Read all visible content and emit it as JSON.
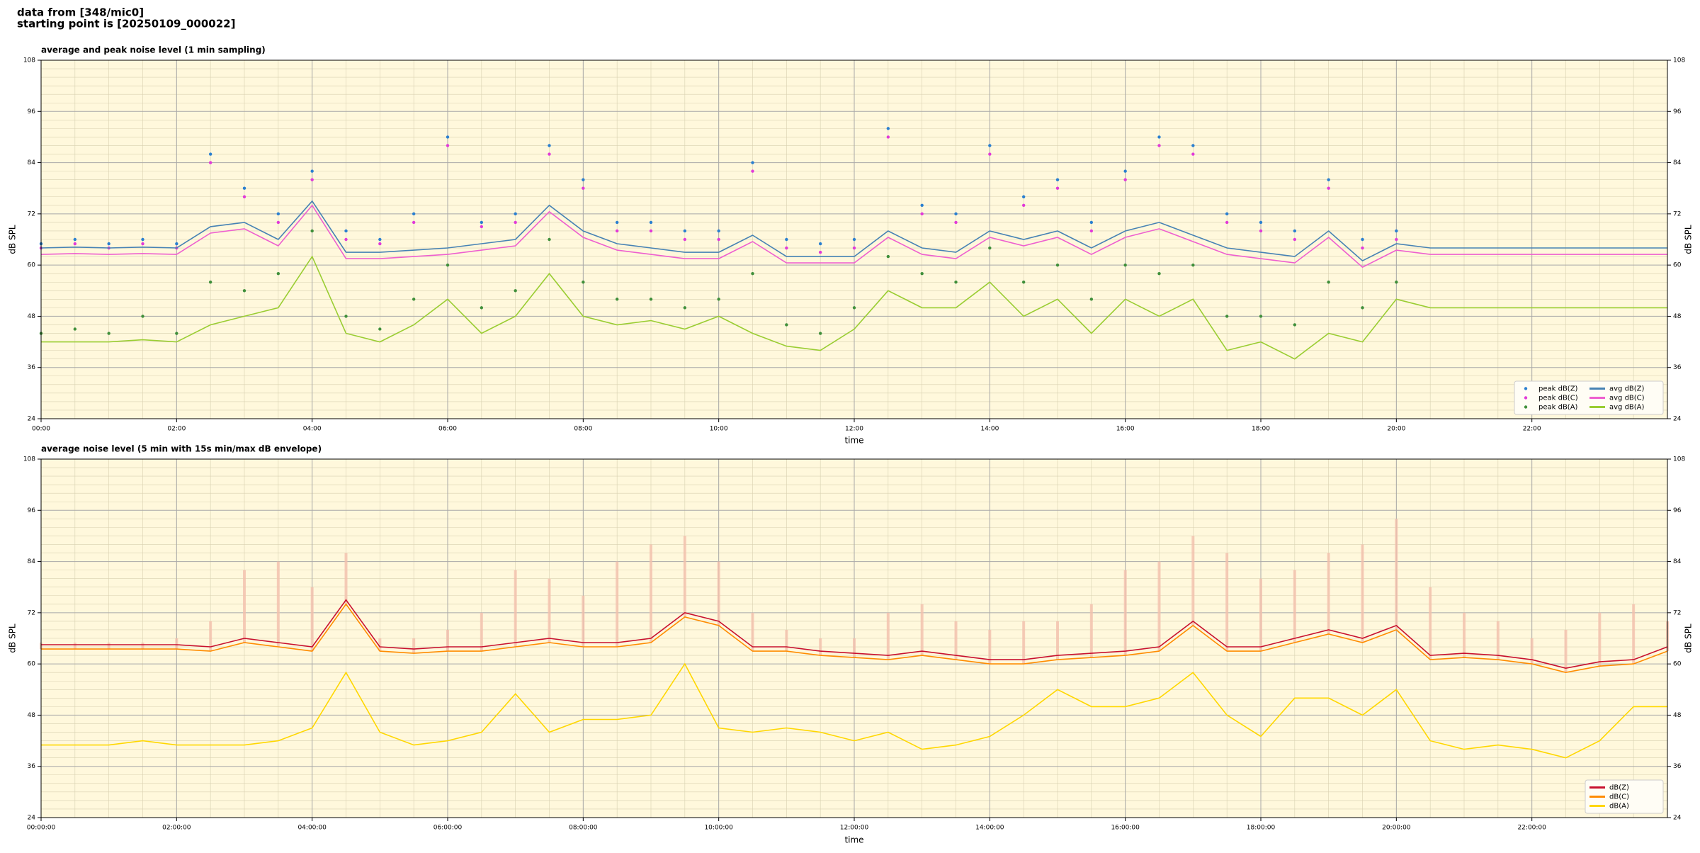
{
  "header": {
    "lines": [
      "data from [348/mic0]",
      "starting point is [20250109_000022]"
    ]
  },
  "chart_data": [
    {
      "type": "line",
      "title": "average and peak noise level (1 min sampling)",
      "xlabel": "time",
      "ylabel": "dB SPL",
      "x": [
        0,
        0.5,
        1,
        1.5,
        2,
        2.5,
        3,
        3.5,
        4,
        4.5,
        5,
        5.5,
        6,
        6.5,
        7,
        7.5,
        8,
        8.5,
        9,
        9.5,
        10,
        10.5,
        11,
        11.5,
        12,
        12.5,
        13,
        13.5,
        14,
        14.5,
        15,
        15.5,
        16,
        16.5,
        17,
        17.5,
        18,
        18.5,
        19,
        19.5,
        20,
        20.5,
        21,
        21.5,
        22,
        22.5,
        23,
        23.5,
        24
      ],
      "xlim": [
        0,
        24
      ],
      "xticks": [
        {
          "value": 0,
          "label": "00:00"
        },
        {
          "value": 2,
          "label": "02:00"
        },
        {
          "value": 4,
          "label": "04:00"
        },
        {
          "value": 6,
          "label": "06:00"
        },
        {
          "value": 8,
          "label": "08:00"
        },
        {
          "value": 10,
          "label": "10:00"
        },
        {
          "value": 12,
          "label": "12:00"
        },
        {
          "value": 14,
          "label": "14:00"
        },
        {
          "value": 16,
          "label": "16:00"
        },
        {
          "value": 18,
          "label": "18:00"
        },
        {
          "value": 20,
          "label": "20:00"
        },
        {
          "value": 22,
          "label": "22:00"
        }
      ],
      "ylim": [
        24,
        108
      ],
      "yticks": [
        24,
        36,
        48,
        60,
        72,
        84,
        96,
        108
      ],
      "grid": true,
      "legend": "lower right",
      "legend_columns": 2,
      "series": [
        {
          "name": "peak dB(Z)",
          "style": "markers",
          "color": "#2a7fd0",
          "values": [
            65,
            66,
            65,
            66,
            65,
            86,
            78,
            72,
            82,
            68,
            66,
            72,
            90,
            70,
            72,
            88,
            80,
            70,
            70,
            68,
            68,
            84,
            66,
            65,
            66,
            92,
            74,
            72,
            88,
            76,
            80,
            70,
            82,
            90,
            88,
            72,
            70,
            68,
            80,
            66,
            68,
            null,
            null,
            null,
            null,
            null,
            null,
            null,
            null
          ]
        },
        {
          "name": "peak dB(C)",
          "style": "markers",
          "color": "#e23ad8",
          "values": [
            64,
            65,
            64,
            65,
            64,
            84,
            76,
            70,
            80,
            66,
            65,
            70,
            88,
            69,
            70,
            86,
            78,
            68,
            68,
            66,
            66,
            82,
            64,
            63,
            64,
            90,
            72,
            70,
            86,
            74,
            78,
            68,
            80,
            88,
            86,
            70,
            68,
            66,
            78,
            64,
            66,
            null,
            null,
            null,
            null,
            null,
            null,
            null,
            null
          ]
        },
        {
          "name": "peak dB(A)",
          "style": "markers",
          "color": "#3f8f3a",
          "values": [
            44,
            45,
            44,
            48,
            44,
            56,
            54,
            58,
            68,
            48,
            45,
            52,
            60,
            50,
            54,
            66,
            56,
            52,
            52,
            50,
            52,
            58,
            46,
            44,
            50,
            62,
            58,
            56,
            64,
            56,
            60,
            52,
            60,
            58,
            60,
            48,
            48,
            46,
            56,
            50,
            56,
            null,
            null,
            null,
            null,
            null,
            null,
            null,
            null
          ]
        },
        {
          "name": "avg dB(Z)",
          "style": "line",
          "color": "#4682b4",
          "values": [
            64,
            64.2,
            64,
            64.2,
            64,
            69,
            70,
            66,
            75,
            63,
            63,
            63.5,
            64,
            65,
            66,
            74,
            68,
            65,
            64,
            63,
            63,
            67,
            62,
            62,
            62,
            68,
            64,
            63,
            68,
            66,
            68,
            64,
            68,
            70,
            67,
            64,
            63,
            62,
            68,
            61,
            65,
            64,
            64,
            64,
            64,
            64,
            64,
            64,
            64
          ]
        },
        {
          "name": "avg dB(C)",
          "style": "line",
          "color": "#ee5fcf",
          "values": [
            62.5,
            62.7,
            62.5,
            62.7,
            62.5,
            67.5,
            68.5,
            64.5,
            74,
            61.5,
            61.5,
            62,
            62.5,
            63.5,
            64.5,
            72.5,
            66.5,
            63.5,
            62.5,
            61.5,
            61.5,
            65.5,
            60.5,
            60.5,
            60.5,
            66.5,
            62.5,
            61.5,
            66.5,
            64.5,
            66.5,
            62.5,
            66.5,
            68.5,
            65.5,
            62.5,
            61.5,
            60.5,
            66.5,
            59.5,
            63.5,
            62.5,
            62.5,
            62.5,
            62.5,
            62.5,
            62.5,
            62.5,
            62.5
          ]
        },
        {
          "name": "avg dB(A)",
          "style": "line",
          "color": "#9acd32",
          "values": [
            42,
            42,
            42,
            42.5,
            42,
            46,
            48,
            50,
            62,
            44,
            42,
            46,
            52,
            44,
            48,
            58,
            48,
            46,
            47,
            45,
            48,
            44,
            41,
            40,
            45,
            54,
            50,
            50,
            56,
            48,
            52,
            44,
            52,
            48,
            52,
            40,
            42,
            38,
            44,
            42,
            52,
            50,
            50,
            50,
            50,
            50,
            50,
            50,
            50
          ]
        }
      ]
    },
    {
      "type": "line",
      "title": "average noise level (5 min with 15s min/max dB envelope)",
      "xlabel": "time",
      "ylabel": "dB SPL",
      "x": [
        0,
        0.5,
        1,
        1.5,
        2,
        2.5,
        3,
        3.5,
        4,
        4.5,
        5,
        5.5,
        6,
        6.5,
        7,
        7.5,
        8,
        8.5,
        9,
        9.5,
        10,
        10.5,
        11,
        11.5,
        12,
        12.5,
        13,
        13.5,
        14,
        14.5,
        15,
        15.5,
        16,
        16.5,
        17,
        17.5,
        18,
        18.5,
        19,
        19.5,
        20,
        20.5,
        21,
        21.5,
        22,
        22.5,
        23,
        23.5,
        24
      ],
      "xlim": [
        0,
        24
      ],
      "xticks": [
        {
          "value": 0,
          "label": "00:00:00"
        },
        {
          "value": 2,
          "label": "02:00:00"
        },
        {
          "value": 4,
          "label": "04:00:00"
        },
        {
          "value": 6,
          "label": "06:00:00"
        },
        {
          "value": 8,
          "label": "08:00:00"
        },
        {
          "value": 10,
          "label": "10:00:00"
        },
        {
          "value": 12,
          "label": "12:00:00"
        },
        {
          "value": 14,
          "label": "14:00:00"
        },
        {
          "value": 16,
          "label": "16:00:00"
        },
        {
          "value": 18,
          "label": "18:00:00"
        },
        {
          "value": 20,
          "label": "20:00:00"
        },
        {
          "value": 22,
          "label": "22:00:00"
        }
      ],
      "ylim": [
        24,
        108
      ],
      "yticks": [
        24,
        36,
        48,
        60,
        72,
        84,
        96,
        108
      ],
      "grid": true,
      "legend": "lower right",
      "legend_columns": 1,
      "envelope_color": "#f4c2ae",
      "series": [
        {
          "name": "dB(Z)",
          "style": "line",
          "color": "#c8102e",
          "values": [
            64.5,
            64.5,
            64.5,
            64.5,
            64.5,
            64,
            66,
            65,
            64,
            75,
            64,
            63.5,
            64,
            64,
            65,
            66,
            65,
            65,
            66,
            72,
            70,
            64,
            64,
            63,
            62.5,
            62,
            63,
            62,
            61,
            61,
            62,
            62.5,
            63,
            64,
            70,
            64,
            64,
            66,
            68,
            66,
            69,
            62,
            62.5,
            62,
            61,
            59,
            60.5,
            61,
            64
          ]
        },
        {
          "name": "dB(C)",
          "style": "line",
          "color": "#ff8c00",
          "values": [
            63.5,
            63.5,
            63.5,
            63.5,
            63.5,
            63,
            65,
            64,
            63,
            74,
            63,
            62.5,
            63,
            63,
            64,
            65,
            64,
            64,
            65,
            71,
            69,
            63,
            63,
            62,
            61.5,
            61,
            62,
            61,
            60,
            60,
            61,
            61.5,
            62,
            63,
            69,
            63,
            63,
            65,
            67,
            65,
            68,
            61,
            61.5,
            61,
            60,
            58,
            59.5,
            60,
            63
          ],
          "max": [
            65,
            65,
            65,
            65,
            66,
            70,
            82,
            84,
            78,
            86,
            66,
            66,
            68,
            72,
            82,
            80,
            76,
            84,
            88,
            90,
            84,
            72,
            68,
            66,
            66,
            72,
            74,
            70,
            68,
            70,
            70,
            74,
            82,
            84,
            90,
            86,
            80,
            82,
            86,
            88,
            94,
            78,
            72,
            70,
            66,
            68,
            72,
            74,
            70
          ]
        },
        {
          "name": "dB(A)",
          "style": "line",
          "color": "#ffd700",
          "values": [
            41,
            41,
            41,
            42,
            41,
            41,
            41,
            42,
            45,
            58,
            44,
            41,
            42,
            44,
            53,
            44,
            47,
            47,
            48,
            60,
            45,
            44,
            45,
            44,
            42,
            44,
            40,
            41,
            43,
            48,
            54,
            50,
            50,
            52,
            58,
            48,
            43,
            52,
            52,
            48,
            54,
            42,
            40,
            41,
            40,
            38,
            42,
            50,
            50
          ]
        }
      ]
    }
  ]
}
